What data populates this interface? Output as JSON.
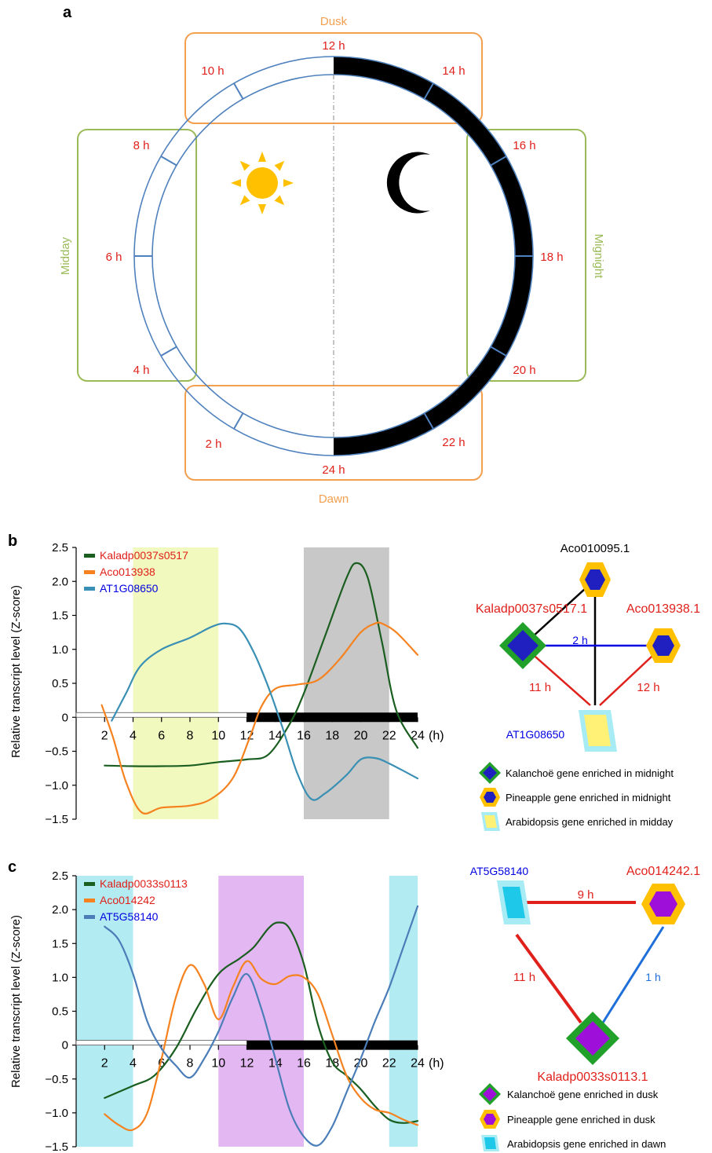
{
  "panel_a": {
    "letter": "a",
    "box_labels": {
      "top": "Dusk",
      "bottom": "Dawn",
      "left": "Midday",
      "right": "Mignight"
    },
    "hour_labels": [
      "12 h",
      "14 h",
      "16 h",
      "18 h",
      "20 h",
      "22 h",
      "24 h",
      "2 h",
      "4 h",
      "6 h",
      "8 h",
      "10 h"
    ],
    "icons": [
      "sun-icon",
      "moon-icon"
    ]
  },
  "panel_b": {
    "letter": "b",
    "network": {
      "nodes": [
        "Aco010095.1",
        "Kaladp0037s0517.1",
        "Aco013938.1",
        "AT1G08650"
      ],
      "edges": [
        {
          "from": "Kaladp0037s0517.1",
          "to": "Aco013938.1",
          "label": "2 h"
        },
        {
          "from": "Kaladp0037s0517.1",
          "to": "AT1G08650",
          "label": "11 h"
        },
        {
          "from": "Aco013938.1",
          "to": "AT1G08650",
          "label": "12 h"
        },
        {
          "from": "Aco010095.1",
          "to": "Kaladp0037s0517.1",
          "label": ""
        },
        {
          "from": "Aco010095.1",
          "to": "AT1G08650",
          "label": ""
        }
      ],
      "legend": [
        "Kalanchoë gene enriched in midnight",
        "Pineapple gene enriched in midnight",
        "Arabidopsis gene enriched in midday"
      ]
    }
  },
  "panel_c": {
    "letter": "c",
    "network": {
      "nodes": [
        "AT5G58140",
        "Aco014242.1",
        "Kaladp0033s0113.1"
      ],
      "edges": [
        {
          "from": "AT5G58140",
          "to": "Aco014242.1",
          "label": "9 h"
        },
        {
          "from": "AT5G58140",
          "to": "Kaladp0033s0113.1",
          "label": "11 h"
        },
        {
          "from": "Aco014242.1",
          "to": "Kaladp0033s0113.1",
          "label": "1 h"
        }
      ],
      "legend": [
        "Kalanchoë gene enriched in dusk",
        "Pineapple gene enriched in dusk",
        "Arabidopsis gene enriched in dawn"
      ]
    }
  },
  "chart_data": [
    {
      "type": "line",
      "panel": "b",
      "ylabel": "Relative transcript level (Z-score)",
      "xlabel": "(h)",
      "ylim": [
        -1.5,
        2.5
      ],
      "xlim": [
        0,
        24
      ],
      "yticks": [
        "2.5",
        "2.0",
        "1.5",
        "1.0",
        "0.5",
        "0",
        "-0.5",
        "-1.0",
        "-1.5"
      ],
      "xticks": [
        "2",
        "4",
        "6",
        "8",
        "10",
        "12",
        "14",
        "16",
        "18",
        "20",
        "22",
        "24"
      ],
      "shaded_regions": [
        {
          "from": 4,
          "to": 10,
          "color": "#f2f9bf"
        },
        {
          "from": 16,
          "to": 22,
          "color": "#c8c8c8"
        }
      ],
      "light_dark_bar": {
        "light": [
          0,
          12
        ],
        "dark": [
          12,
          24
        ]
      },
      "series": [
        {
          "name": "Kaladp0037s0517",
          "color": "#1a5e20",
          "x": [
            2,
            4,
            6,
            8,
            10,
            12,
            13.5,
            15,
            16,
            17.5,
            19,
            19.7,
            20.5,
            21.5,
            22.5,
            24
          ],
          "y": [
            -0.71,
            -0.72,
            -0.72,
            -0.71,
            -0.66,
            -0.62,
            -0.55,
            -0.1,
            0.35,
            1.2,
            2.05,
            2.27,
            2.05,
            1.1,
            0.1,
            -0.45
          ]
        },
        {
          "name": "Aco013938",
          "color": "#f5821f",
          "x": [
            1.8,
            2.6,
            3.5,
            4.6,
            6,
            8,
            9.5,
            11,
            12.2,
            13,
            14,
            15.5,
            17,
            18.5,
            20,
            21,
            21.5,
            22.5,
            24
          ],
          "y": [
            0.18,
            -0.3,
            -0.95,
            -1.4,
            -1.33,
            -1.3,
            -1.2,
            -0.9,
            -0.3,
            0.15,
            0.42,
            0.48,
            0.55,
            0.85,
            1.25,
            1.38,
            1.38,
            1.25,
            0.92
          ]
        },
        {
          "name": "AT1G08650",
          "color": "#3a90b4",
          "x": [
            2.5,
            3.5,
            4.5,
            6,
            8,
            9.5,
            10.5,
            11.5,
            12.5,
            13.5,
            14.5,
            15.5,
            16.5,
            17.5,
            19,
            20,
            21,
            22,
            24
          ],
          "y": [
            -0.05,
            0.35,
            0.75,
            1.0,
            1.17,
            1.33,
            1.38,
            1.3,
            0.95,
            0.45,
            -0.15,
            -0.8,
            -1.2,
            -1.12,
            -0.85,
            -0.62,
            -0.6,
            -0.68,
            -0.9
          ]
        }
      ]
    },
    {
      "type": "line",
      "panel": "c",
      "ylabel": "Relative transcript level (Z-score)",
      "xlabel": "(h)",
      "ylim": [
        -1.5,
        2.5
      ],
      "xlim": [
        0,
        24
      ],
      "yticks": [
        "2.5",
        "2.0",
        "1.5",
        "1.0",
        "0.5",
        "0",
        "-0.5",
        "-1.0",
        "-1.5"
      ],
      "xticks": [
        "2",
        "4",
        "6",
        "8",
        "10",
        "12",
        "14",
        "16",
        "18",
        "20",
        "22",
        "24"
      ],
      "shaded_regions": [
        {
          "from": 0,
          "to": 4,
          "color": "#b2ebf2"
        },
        {
          "from": 10,
          "to": 16,
          "color": "#e3b7f2"
        },
        {
          "from": 22,
          "to": 24,
          "color": "#b2ebf2"
        }
      ],
      "light_dark_bar": {
        "light": [
          0,
          12
        ],
        "dark": [
          12,
          24
        ]
      },
      "series": [
        {
          "name": "Kaladp0033s0113",
          "color": "#1a5e20",
          "x": [
            2,
            4,
            5.5,
            7,
            8.5,
            10,
            11.5,
            12.5,
            13.5,
            14.2,
            15,
            16,
            17,
            18,
            19,
            20,
            21,
            22,
            23,
            24
          ],
          "y": [
            -0.78,
            -0.6,
            -0.45,
            -0.05,
            0.55,
            1.05,
            1.28,
            1.45,
            1.72,
            1.81,
            1.72,
            1.2,
            0.3,
            -0.25,
            -0.45,
            -0.65,
            -0.9,
            -1.1,
            -1.15,
            -1.12
          ]
        },
        {
          "name": "Aco014242",
          "color": "#f5821f",
          "x": [
            2,
            3,
            4,
            5,
            6,
            7,
            8,
            9,
            10,
            11,
            12,
            13,
            14,
            15,
            16,
            17,
            18,
            19,
            20,
            21,
            22,
            23,
            24
          ],
          "y": [
            -1.02,
            -1.18,
            -1.25,
            -1.0,
            -0.2,
            0.7,
            1.18,
            0.9,
            0.38,
            0.85,
            1.24,
            0.98,
            0.9,
            1.02,
            1.0,
            0.75,
            0.15,
            -0.45,
            -0.78,
            -0.95,
            -1.0,
            -1.1,
            -1.18
          ]
        },
        {
          "name": "AT5G58140",
          "color": "#4b7db8",
          "x": [
            2,
            3,
            4,
            5,
            6,
            7,
            8,
            9,
            10,
            11,
            12,
            13,
            14,
            15,
            16,
            17,
            18,
            19,
            20,
            21,
            22,
            23,
            24
          ],
          "y": [
            1.75,
            1.55,
            1.05,
            0.35,
            -0.05,
            -0.3,
            -0.48,
            -0.2,
            0.2,
            0.7,
            1.05,
            0.55,
            -0.2,
            -0.95,
            -1.35,
            -1.48,
            -1.2,
            -0.7,
            -0.2,
            0.35,
            0.85,
            1.45,
            2.05
          ]
        }
      ]
    }
  ]
}
